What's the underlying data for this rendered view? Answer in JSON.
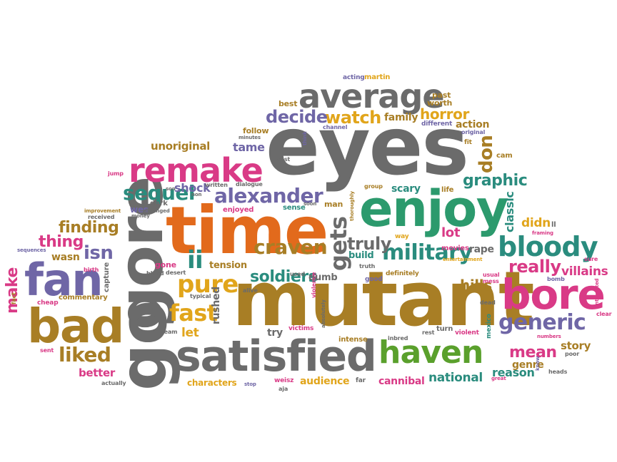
{
  "palette": {
    "gray": "#6b6b6b",
    "orange": "#e26a1c",
    "green": "#2c9a6d",
    "magenta": "#d93a86",
    "purple": "#6f66a6",
    "gold": "#a87e25",
    "yellow": "#e1a51b",
    "lime": "#5aa02c",
    "teal": "#2a8c7e",
    "red": "#c9383a"
  },
  "words": [
    {
      "text": "eyes",
      "color": "gray"
    },
    {
      "text": "mutant",
      "color": "gold"
    },
    {
      "text": "time",
      "color": "orange"
    },
    {
      "text": "enjoy",
      "color": "green"
    },
    {
      "text": "gore",
      "color": "gray"
    },
    {
      "text": "satisfied",
      "color": "gray"
    },
    {
      "text": "bore",
      "color": "magenta"
    },
    {
      "text": "fan",
      "color": "purple"
    },
    {
      "text": "bad",
      "color": "gold"
    },
    {
      "text": "go",
      "color": "gray"
    },
    {
      "text": "average",
      "color": "gray"
    },
    {
      "text": "remake",
      "color": "magenta"
    },
    {
      "text": "haven",
      "color": "lime"
    },
    {
      "text": "bloody",
      "color": "teal"
    },
    {
      "text": "generic",
      "color": "purple"
    },
    {
      "text": "military",
      "color": "teal"
    },
    {
      "text": "alexander",
      "color": "purple"
    },
    {
      "text": "craven",
      "color": "gold"
    },
    {
      "text": "pure",
      "color": "yellow"
    },
    {
      "text": "fast",
      "color": "yellow"
    },
    {
      "text": "sequel",
      "color": "teal"
    },
    {
      "text": "liked",
      "color": "gold"
    },
    {
      "text": "gets",
      "color": "gray"
    },
    {
      "text": "truly",
      "color": "gray"
    },
    {
      "text": "really",
      "color": "magenta"
    },
    {
      "text": "graphic",
      "color": "teal"
    },
    {
      "text": "don",
      "color": "gold"
    },
    {
      "text": "watch",
      "color": "yellow"
    },
    {
      "text": "decide",
      "color": "purple"
    },
    {
      "text": "horror",
      "color": "yellow"
    },
    {
      "text": "mean",
      "color": "magenta"
    },
    {
      "text": "villains",
      "color": "magenta"
    },
    {
      "text": "soldiers",
      "color": "teal"
    },
    {
      "text": "thing",
      "color": "magenta"
    },
    {
      "text": "isn",
      "color": "purple"
    },
    {
      "text": "finding",
      "color": "gold"
    },
    {
      "text": "ii",
      "color": "teal"
    },
    {
      "text": "shock",
      "color": "purple"
    },
    {
      "text": "tame",
      "color": "purple"
    },
    {
      "text": "unoriginal",
      "color": "gold"
    },
    {
      "text": "hills",
      "color": "gold"
    },
    {
      "text": "make",
      "color": "magenta"
    },
    {
      "text": "story",
      "color": "gold"
    },
    {
      "text": "genre",
      "color": "gold"
    },
    {
      "text": "reason",
      "color": "teal"
    },
    {
      "text": "national",
      "color": "teal"
    },
    {
      "text": "cannibal",
      "color": "magenta"
    },
    {
      "text": "audience",
      "color": "yellow"
    },
    {
      "text": "characters",
      "color": "yellow"
    },
    {
      "text": "better",
      "color": "magenta"
    },
    {
      "text": "let",
      "color": "yellow"
    },
    {
      "text": "rushed",
      "color": "gray"
    },
    {
      "text": "scary",
      "color": "teal"
    },
    {
      "text": "classic",
      "color": "teal"
    },
    {
      "text": "lot",
      "color": "magenta"
    },
    {
      "text": "didn",
      "color": "yellow"
    },
    {
      "text": "rape",
      "color": "gray"
    },
    {
      "text": "family",
      "color": "gold"
    },
    {
      "text": "action",
      "color": "gold"
    },
    {
      "text": "follow",
      "color": "gold"
    },
    {
      "text": "tension",
      "color": "gold"
    },
    {
      "text": "dumb",
      "color": "gray"
    },
    {
      "text": "build",
      "color": "teal"
    },
    {
      "text": "try",
      "color": "gray"
    },
    {
      "text": "wasn",
      "color": "gold"
    },
    {
      "text": "gone",
      "color": "magenta"
    },
    {
      "text": "wes",
      "color": "purple"
    },
    {
      "text": "dark",
      "color": "gray"
    },
    {
      "text": "sense",
      "color": "teal"
    },
    {
      "text": "enjoyed",
      "color": "magenta"
    },
    {
      "text": "man",
      "color": "gold"
    },
    {
      "text": "best",
      "color": "gold"
    },
    {
      "text": "past",
      "color": "gold"
    },
    {
      "text": "worth",
      "color": "gold"
    },
    {
      "text": "acting",
      "color": "purple"
    },
    {
      "text": "martin",
      "color": "yellow"
    },
    {
      "text": "different",
      "color": "purple"
    },
    {
      "text": "channel",
      "color": "purple"
    },
    {
      "text": "original",
      "color": "purple"
    },
    {
      "text": "fit",
      "color": "gold"
    },
    {
      "text": "cam",
      "color": "gold"
    },
    {
      "text": "cast",
      "color": "gray"
    },
    {
      "text": "think",
      "color": "purple"
    },
    {
      "text": "jump",
      "color": "magenta"
    },
    {
      "text": "written",
      "color": "gray"
    },
    {
      "text": "dialogue",
      "color": "gray"
    },
    {
      "text": "group",
      "color": "gold"
    },
    {
      "text": "life",
      "color": "gold"
    },
    {
      "text": "thoroughly",
      "color": "gold"
    },
    {
      "text": "improvement",
      "color": "gold"
    },
    {
      "text": "received",
      "color": "gray"
    },
    {
      "text": "money",
      "color": "gray"
    },
    {
      "text": "deranged",
      "color": "gray"
    },
    {
      "text": "way",
      "color": "yellow"
    },
    {
      "text": "movies",
      "color": "magenta"
    },
    {
      "text": "entertainment",
      "color": "yellow"
    },
    {
      "text": "framing",
      "color": "magenta"
    },
    {
      "text": "sequences",
      "color": "purple"
    },
    {
      "text": "birth",
      "color": "magenta"
    },
    {
      "text": "capture",
      "color": "gray"
    },
    {
      "text": "commentary",
      "color": "gold"
    },
    {
      "text": "cheap",
      "color": "magenta"
    },
    {
      "text": "fact",
      "color": "gold"
    },
    {
      "text": "sent",
      "color": "magenta"
    },
    {
      "text": "actually",
      "color": "gray"
    },
    {
      "text": "typical",
      "color": "gray"
    },
    {
      "text": "team",
      "color": "gray"
    },
    {
      "text": "blood",
      "color": "gray"
    },
    {
      "text": "desert",
      "color": "gray"
    },
    {
      "text": "alive",
      "color": "gray"
    },
    {
      "text": "victims",
      "color": "magenta"
    },
    {
      "text": "violence",
      "color": "magenta"
    },
    {
      "text": "used",
      "color": "gray"
    },
    {
      "text": "truth",
      "color": "gray"
    },
    {
      "text": "good",
      "color": "purple"
    },
    {
      "text": "definitely",
      "color": "gold"
    },
    {
      "text": "intense",
      "color": "gold"
    },
    {
      "text": "absolutely",
      "color": "gray"
    },
    {
      "text": "inbred",
      "color": "gray"
    },
    {
      "text": "rest",
      "color": "gray"
    },
    {
      "text": "turn",
      "color": "gray"
    },
    {
      "text": "violent",
      "color": "magenta"
    },
    {
      "text": "mexico",
      "color": "teal"
    },
    {
      "text": "usual",
      "color": "magenta"
    },
    {
      "text": "mess",
      "color": "magenta"
    },
    {
      "text": "dead",
      "color": "gray"
    },
    {
      "text": "numbers",
      "color": "magenta"
    },
    {
      "text": "poor",
      "color": "gray"
    },
    {
      "text": "heads",
      "color": "gray"
    },
    {
      "text": "great",
      "color": "magenta"
    },
    {
      "text": "know",
      "color": "purple"
    },
    {
      "text": "bomb",
      "color": "purple"
    },
    {
      "text": "sure",
      "color": "magenta"
    },
    {
      "text": "interested",
      "color": "magenta"
    },
    {
      "text": "clear",
      "color": "magenta"
    },
    {
      "text": "weisz",
      "color": "magenta"
    },
    {
      "text": "aja",
      "color": "gray"
    },
    {
      "text": "far",
      "color": "gray"
    },
    {
      "text": "stop",
      "color": "purple"
    },
    {
      "text": "minutes",
      "color": "gray"
    },
    {
      "text": "soon",
      "color": "gray"
    },
    {
      "text": "non",
      "color": "gray"
    },
    {
      "text": "son",
      "color": "gray"
    },
    {
      "text": "ll",
      "color": "gray"
    }
  ]
}
